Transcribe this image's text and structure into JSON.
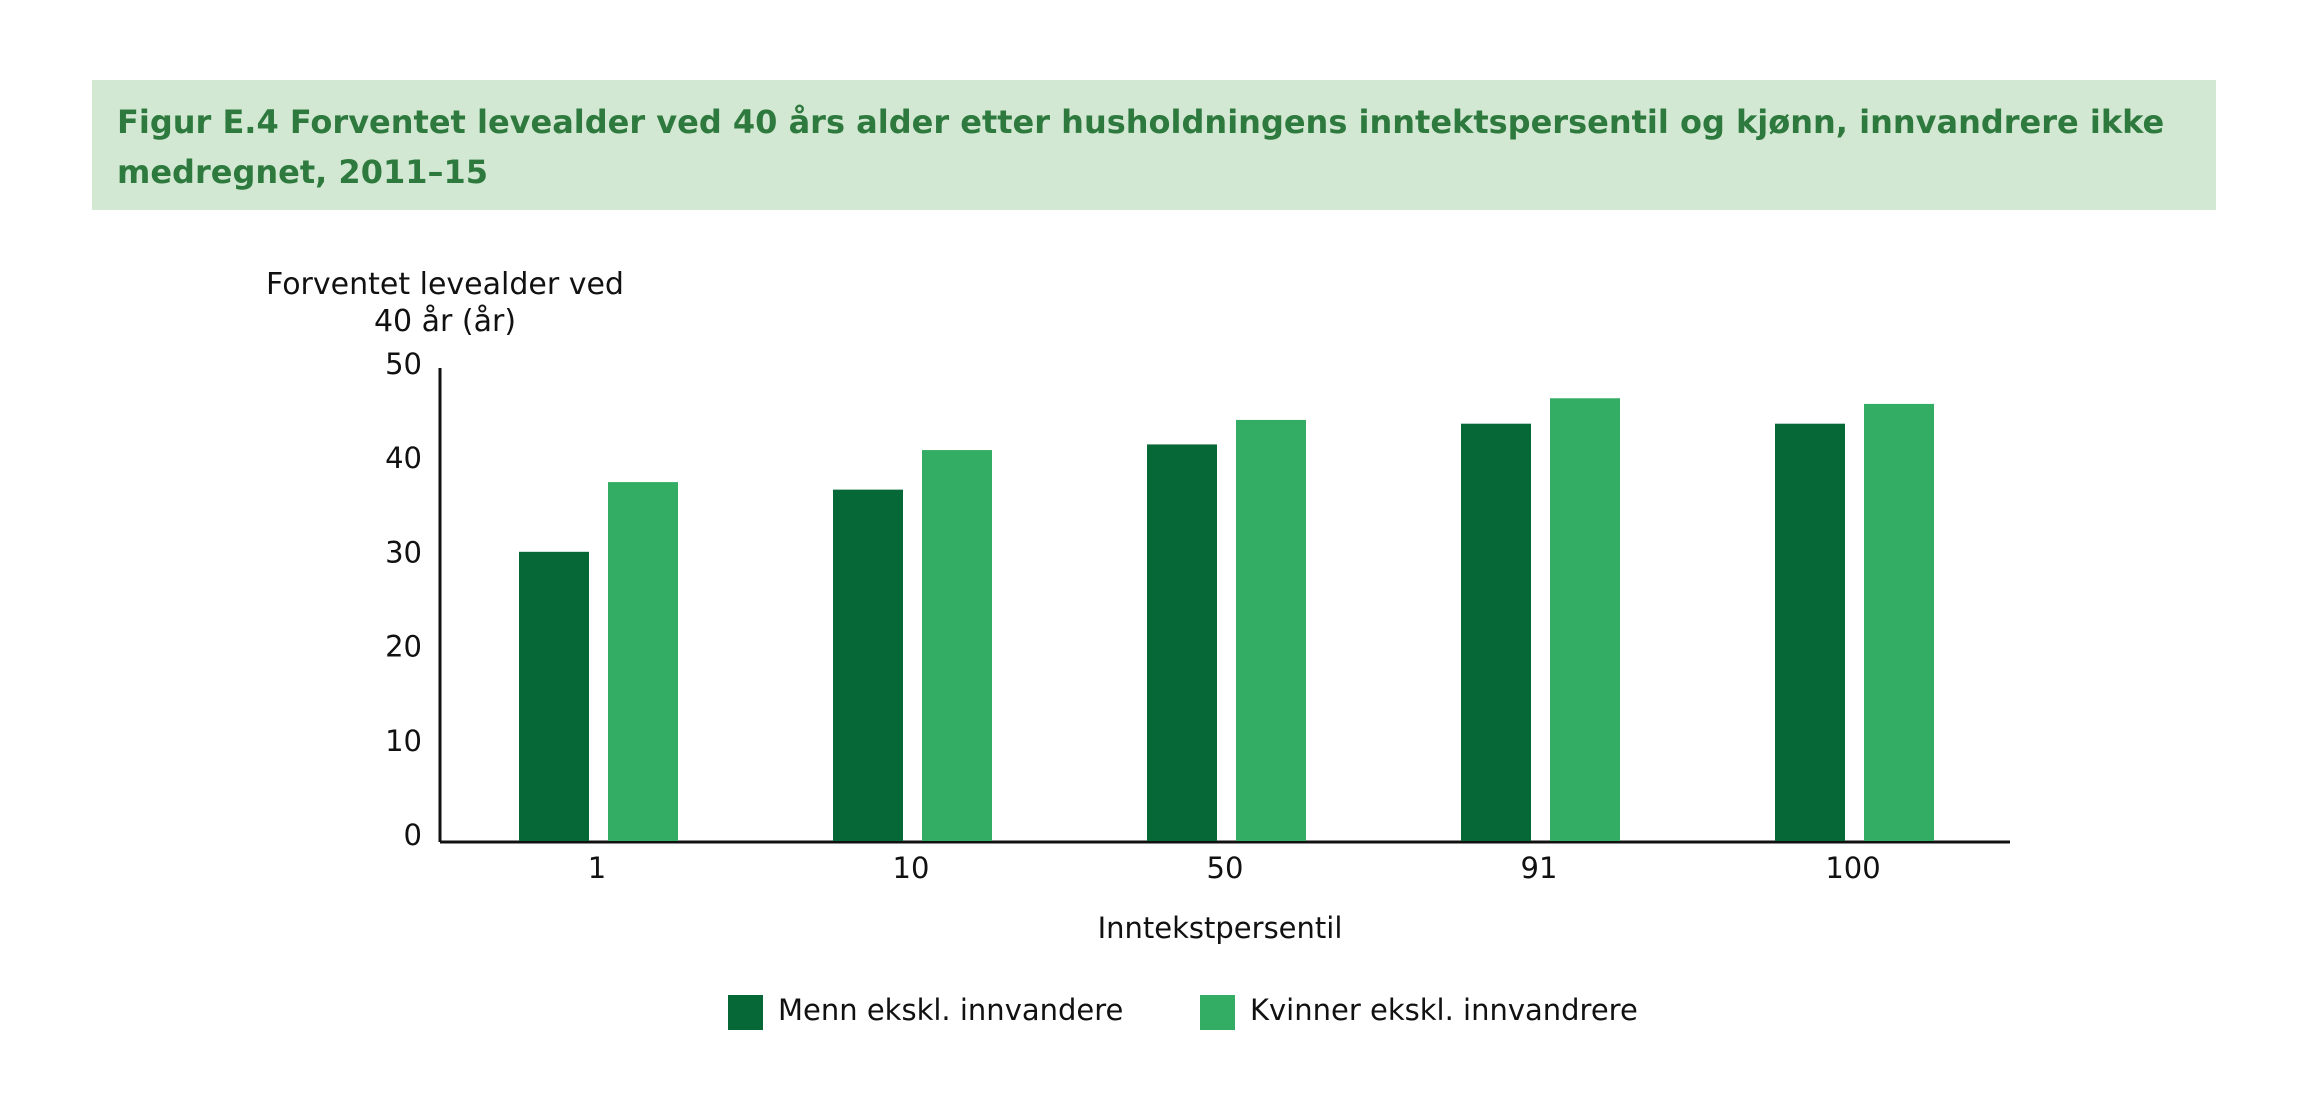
{
  "chart_data": {
    "type": "bar",
    "title": "Figur E.4 Forventet levealder ved 40 års alder etter husholdningens inntektspersentil og kjønn, innvandrere ikke medregnet, 2011–15",
    "y_label": "Forventet levealder ved 40 år (år)",
    "x_label": "Inntekstpersentil",
    "categories": [
      "1",
      "10",
      "50",
      "91",
      "100"
    ],
    "series": [
      {
        "name": "Menn ekskl. innvandere",
        "color": "#076837",
        "values": [
          30.7,
          37.3,
          42.1,
          44.3,
          44.3
        ]
      },
      {
        "name": "Kvinner ekskl. innvandrere",
        "color": "#33ad63",
        "values": [
          38.1,
          41.5,
          44.7,
          47.0,
          46.4
        ]
      }
    ],
    "ylim": [
      0,
      50
    ],
    "yticks": [
      0,
      10,
      20,
      30,
      40,
      50
    ],
    "grid": false,
    "legend": "bottom"
  }
}
